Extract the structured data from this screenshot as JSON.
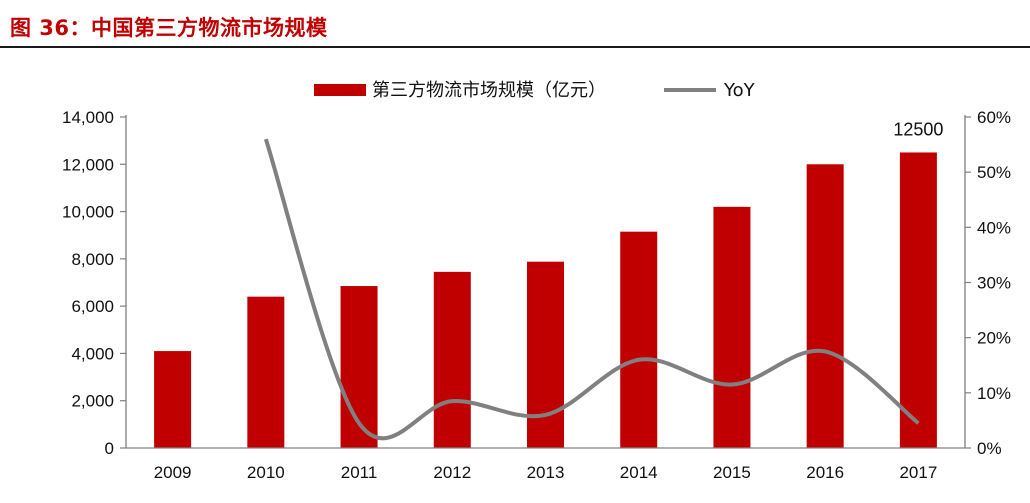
{
  "page": {
    "title": "图 36：中国第三方物流市场规模"
  },
  "colors": {
    "bar": "#c00000",
    "line": "#808080",
    "axis": "#808080",
    "title": "#c00000"
  },
  "chart_data": {
    "type": "bar",
    "title": "中国第三方物流市场规模",
    "categories": [
      "2009",
      "2010",
      "2011",
      "2012",
      "2013",
      "2014",
      "2015",
      "2016",
      "2017"
    ],
    "series": [
      {
        "name": "第三方物流市场规模（亿元）",
        "type": "bar",
        "axis": "left",
        "values": [
          4100,
          6400,
          6850,
          7450,
          7880,
          9150,
          10200,
          12000,
          12500
        ]
      },
      {
        "name": "YoY",
        "type": "line",
        "axis": "right",
        "unit": "%",
        "values": [
          null,
          56,
          4.5,
          8.5,
          6,
          16,
          11.5,
          17.5,
          4.5
        ]
      }
    ],
    "data_labels": [
      {
        "category": "2017",
        "text": "12500"
      }
    ],
    "y_left": {
      "min": 0,
      "max": 14000,
      "step": 2000,
      "ticks": [
        "0",
        "2,000",
        "4,000",
        "6,000",
        "8,000",
        "10,000",
        "12,000",
        "14,000"
      ]
    },
    "y_right": {
      "min": 0,
      "max": 60,
      "step": 10,
      "ticks": [
        "0%",
        "10%",
        "20%",
        "30%",
        "40%",
        "50%",
        "60%"
      ]
    },
    "legend": {
      "position": "top"
    },
    "grid": false
  }
}
